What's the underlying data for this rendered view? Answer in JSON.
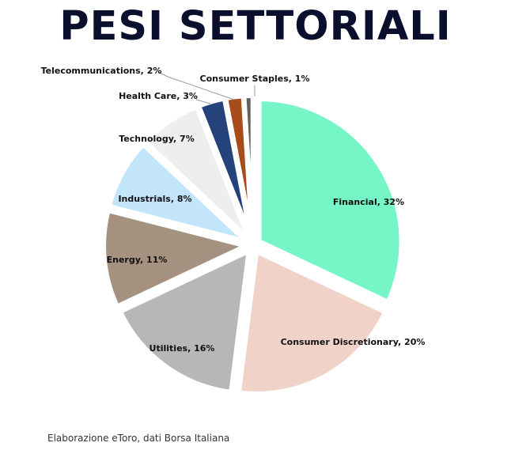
{
  "chart_data": {
    "type": "pie",
    "title": "PESI SETTORIALI",
    "slices": [
      {
        "label": "Financial",
        "value": 32,
        "color": "#76f5c6"
      },
      {
        "label": "Consumer Discretionary",
        "value": 20,
        "color": "#f0d2c9"
      },
      {
        "label": "Utilities",
        "value": 16,
        "color": "#b7b7b7"
      },
      {
        "label": "Energy",
        "value": 11,
        "color": "#a49180"
      },
      {
        "label": "Industrials",
        "value": 8,
        "color": "#c3e5fa"
      },
      {
        "label": "Technology",
        "value": 7,
        "color": "#eeeeee"
      },
      {
        "label": "Health Care",
        "value": 3,
        "color": "#24437a"
      },
      {
        "label": "Telecommunications",
        "value": 2,
        "color": "#a74c1a"
      },
      {
        "label": "Consumer Staples",
        "value": 1,
        "color": "#5f5f5f"
      }
    ],
    "display_labels": [
      "Financial, 32%",
      "Consumer Discretionary, 20%",
      "Utilities, 16%",
      "Energy, 11%",
      "Industrials, 8%",
      "Technology, 7%",
      "Health Care, 3%",
      "Telecommunications, 2%",
      "Consumer Staples, 1%"
    ],
    "exploded": true,
    "legend": "none"
  },
  "footer": {
    "source": "Elaborazione eToro, dati Borsa Italiana"
  }
}
